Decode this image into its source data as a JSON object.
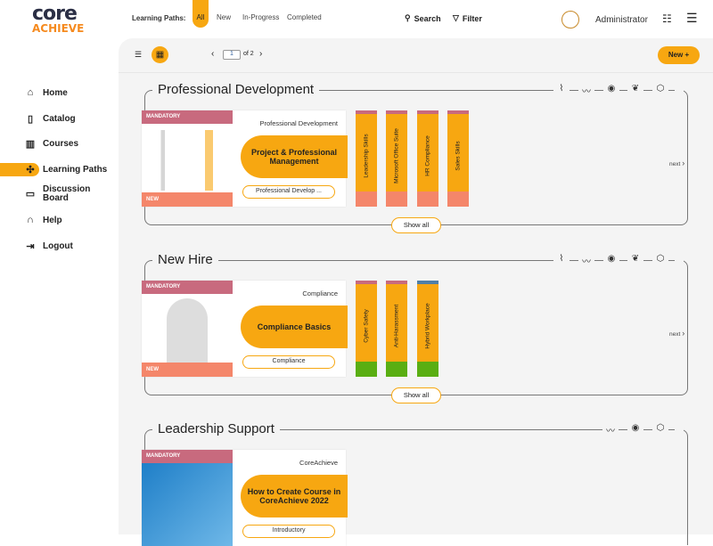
{
  "logo": {
    "top": "core",
    "bottom": "ACHIEVE"
  },
  "header": {
    "filter_label": "Learning Paths:",
    "tabs": [
      {
        "label": "All",
        "active": true
      },
      {
        "label": "New"
      },
      {
        "label": "In-Progress"
      },
      {
        "label": "Completed"
      }
    ],
    "search": "Search",
    "filter": "Filter",
    "user": "Administrator"
  },
  "toolbar": {
    "page": "1",
    "of": "of 2",
    "new": "New +"
  },
  "sidebar": {
    "items": [
      {
        "label": "Home",
        "icon": "home-icon",
        "g": "⌂"
      },
      {
        "label": "Catalog",
        "icon": "book-icon",
        "g": "▯"
      },
      {
        "label": "Courses",
        "icon": "open-book-icon",
        "g": "▥"
      },
      {
        "label": "Learning Paths",
        "icon": "puzzle-icon",
        "g": "✣",
        "active": true
      },
      {
        "label": "Discussion Board",
        "icon": "chat-icon",
        "g": "▭"
      },
      {
        "label": "Help",
        "icon": "headset-icon",
        "g": "∩"
      },
      {
        "label": "Logout",
        "icon": "logout-icon",
        "g": "⇥"
      }
    ]
  },
  "colors": {
    "accent": "#f7a711",
    "mandatory": "#c86a7e",
    "new": "#f4866a",
    "complete": "#5aae12"
  },
  "groups": [
    {
      "title": "Professional Development",
      "icons": [
        "paperclip-icon",
        "activity-icon",
        "eye-icon",
        "feather-icon",
        "cube-icon"
      ],
      "card": {
        "mandatory": "MANDATORY",
        "new": "NEW",
        "category": "Professional Development",
        "title": "Project & Professional Management",
        "tag": "Professional Develop ...",
        "image": "people-illustration"
      },
      "stacks": [
        {
          "label": "Leadership Skills",
          "top": "#c86a7e",
          "bottom": "#f4866a"
        },
        {
          "label": "Microsoft Office Suite",
          "top": "#c86a7e",
          "bottom": "#f4866a"
        },
        {
          "label": "HR Compliance",
          "top": "#c86a7e",
          "bottom": "#f4866a"
        },
        {
          "label": "Sales Skills",
          "top": "#c86a7e",
          "bottom": "#f4866a"
        }
      ],
      "next": "next",
      "show_all": "Show all"
    },
    {
      "title": "New Hire",
      "icons": [
        "paperclip-icon",
        "activity-icon",
        "eye-icon",
        "feather-icon",
        "cube-icon"
      ],
      "card": {
        "mandatory": "MANDATORY",
        "new": "NEW",
        "category": "Compliance",
        "title": "Compliance Basics",
        "tag": "Compliance",
        "image": "ebook-illustration"
      },
      "stacks": [
        {
          "label": "Cyber Safety",
          "top": "#c86a7e",
          "bottom": "#5aae12"
        },
        {
          "label": "Anti-Harassment",
          "top": "#c86a7e",
          "bottom": "#5aae12"
        },
        {
          "label": "Hybrid Workplace",
          "top": "#4f7fa8",
          "bottom": "#5aae12"
        }
      ],
      "next": "next",
      "show_all": "Show all"
    },
    {
      "title": "Leadership Support",
      "icons": [
        "activity-icon",
        "eye-icon",
        "cube-icon"
      ],
      "card": {
        "mandatory": "MANDATORY",
        "category": "CoreAchieve",
        "title": "How to Create Course in CoreAchieve 2022",
        "tag": "Introductory",
        "image": "book-illustration"
      },
      "stacks": []
    }
  ]
}
